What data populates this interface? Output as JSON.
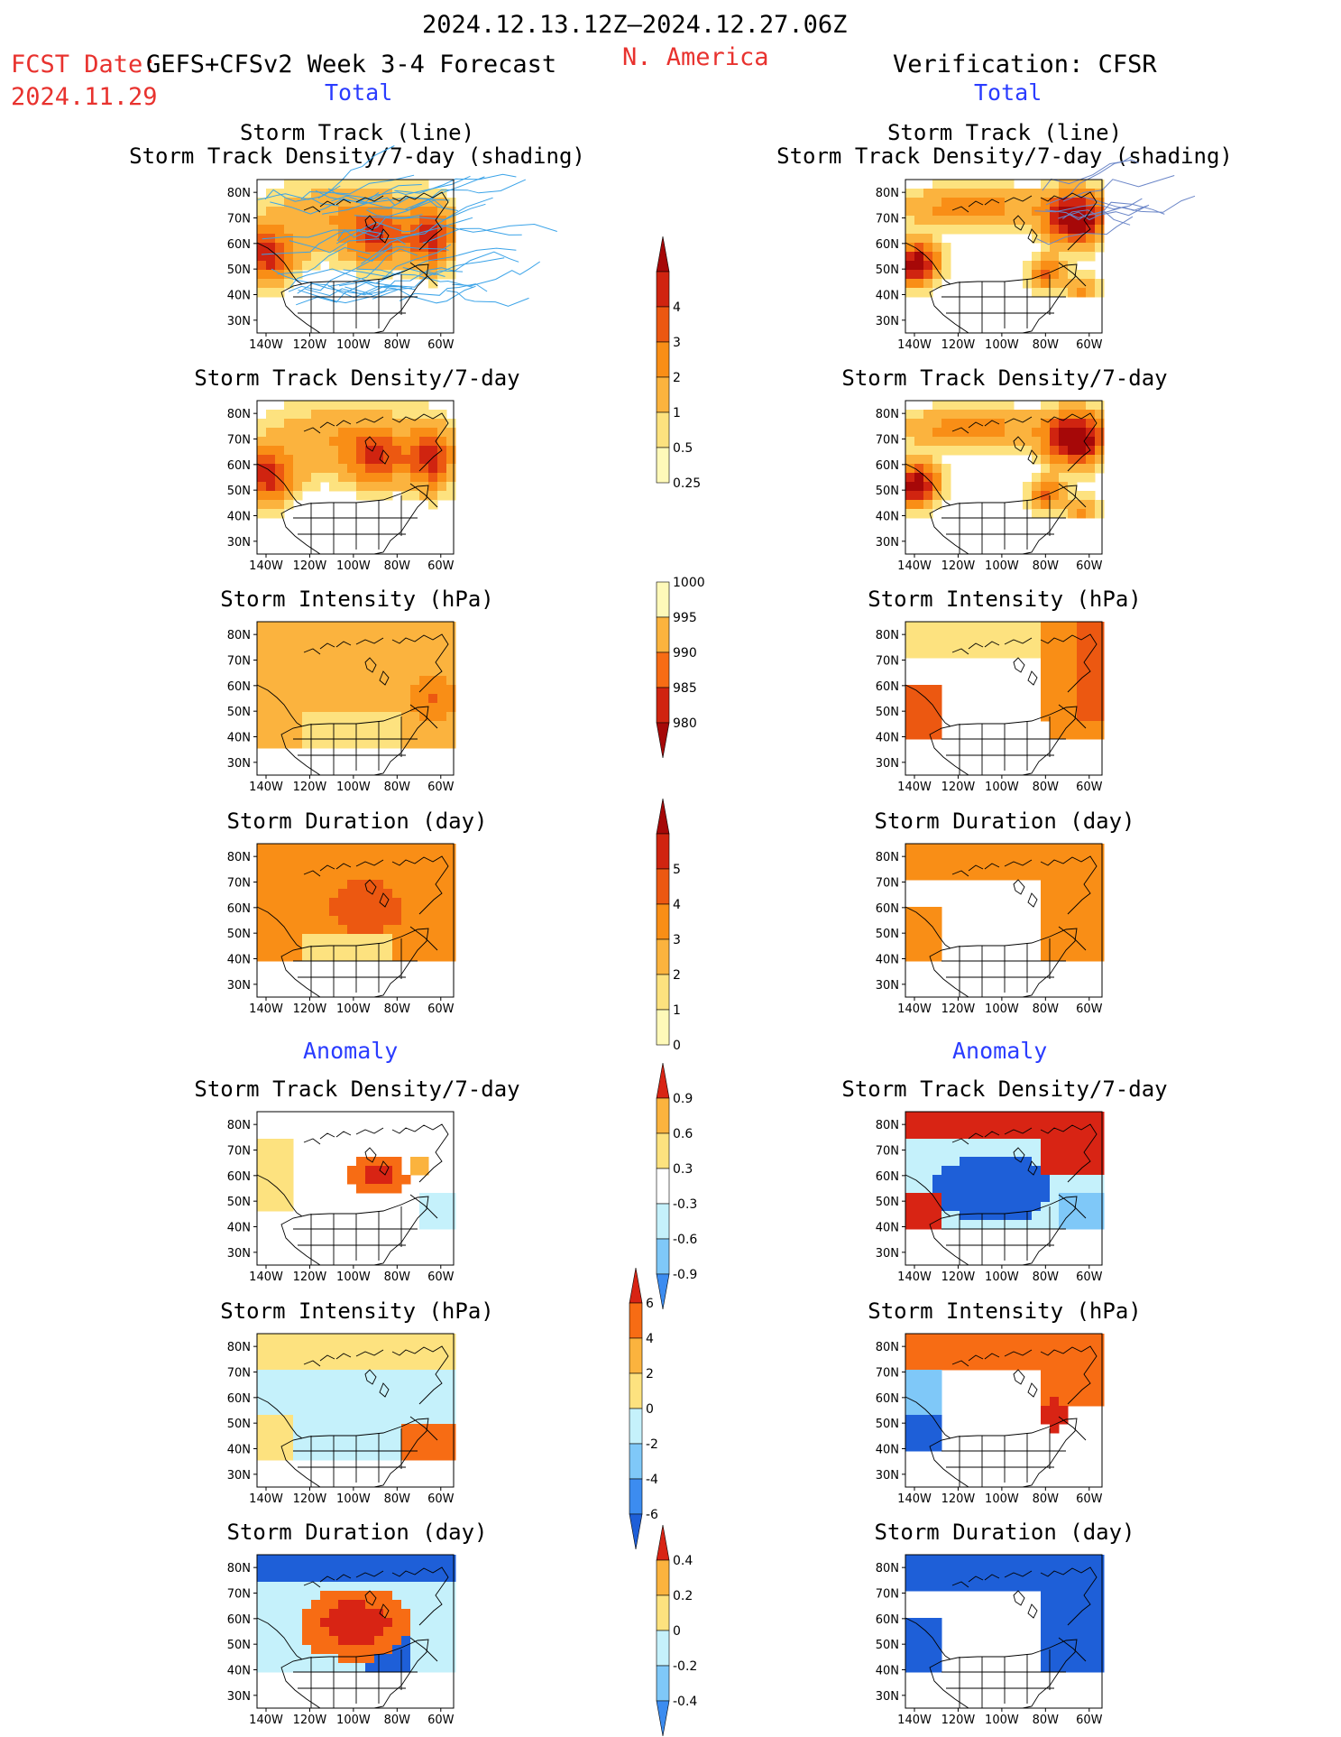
{
  "header": {
    "date_range": "2024.12.13.12Z–2024.12.27.06Z",
    "fcst_label": "FCST Date:",
    "fcst_model": "GEFS+CFSv2 Week 3-4 Forecast",
    "fcst_date": "2024.11.29",
    "region": "N. America",
    "verification": "Verification: CFSR",
    "total_left": "Total",
    "total_right": "Total",
    "anomaly_left": "Anomaly",
    "anomaly_right": "Anomaly"
  },
  "axes": {
    "lon_ticks": [
      "140W",
      "120W",
      "100W",
      "80W",
      "60W"
    ],
    "lat_ticks": [
      "80N",
      "70N",
      "60N",
      "50N",
      "40N",
      "30N"
    ]
  },
  "colors": {
    "total_scale": [
      "#fef9b9",
      "#fde27f",
      "#fbb33e",
      "#f98e16",
      "#ec5811",
      "#d02410",
      "#a60808"
    ],
    "anom_scale": [
      "#1e5fd8",
      "#3c8cf0",
      "#7fc8f8",
      "#c5f1fb",
      "#ffffff",
      "#fde27f",
      "#fbb33e",
      "#f76c14",
      "#d82414"
    ],
    "track_line": "#3aa3e8",
    "track_line_obs": "#6b86c8"
  },
  "chart_data": [
    {
      "type": "heatmap",
      "id": "fc-track",
      "title_line1": "Storm Track (line)",
      "title_line2": "Storm Track Density/7-day (shading)",
      "xlabel": "",
      "ylabel": "",
      "x_range": [
        -140,
        -50
      ],
      "y_range": [
        25,
        85
      ],
      "scale": "total",
      "has_tracks": true
    },
    {
      "type": "heatmap",
      "id": "obs-track",
      "title_line1": "Storm Track (line)",
      "title_line2": "Storm Track Density/7-day (shading)",
      "xlabel": "",
      "ylabel": "",
      "x_range": [
        -140,
        -50
      ],
      "y_range": [
        25,
        85
      ],
      "scale": "total",
      "has_tracks": true
    },
    {
      "type": "heatmap",
      "id": "fc-density",
      "title_line1": "Storm Track Density/7-day",
      "xlabel": "",
      "ylabel": "",
      "x_range": [
        -140,
        -50
      ],
      "y_range": [
        25,
        85
      ],
      "scale": "total"
    },
    {
      "type": "heatmap",
      "id": "obs-density",
      "title_line1": "Storm Track Density/7-day",
      "xlabel": "",
      "ylabel": "",
      "x_range": [
        -140,
        -50
      ],
      "y_range": [
        25,
        85
      ],
      "scale": "total"
    },
    {
      "type": "heatmap",
      "id": "fc-intensity",
      "title_line1": "Storm Intensity (hPa)",
      "xlabel": "",
      "ylabel": "",
      "x_range": [
        -140,
        -50
      ],
      "y_range": [
        25,
        85
      ],
      "scale": "total"
    },
    {
      "type": "heatmap",
      "id": "obs-intensity",
      "title_line1": "Storm Intensity (hPa)",
      "xlabel": "",
      "ylabel": "",
      "x_range": [
        -140,
        -50
      ],
      "y_range": [
        25,
        85
      ],
      "scale": "total"
    },
    {
      "type": "heatmap",
      "id": "fc-duration",
      "title_line1": "Storm Duration (day)",
      "xlabel": "",
      "ylabel": "",
      "x_range": [
        -140,
        -50
      ],
      "y_range": [
        25,
        85
      ],
      "scale": "total"
    },
    {
      "type": "heatmap",
      "id": "obs-duration",
      "title_line1": "Storm Duration (day)",
      "xlabel": "",
      "ylabel": "",
      "x_range": [
        -140,
        -50
      ],
      "y_range": [
        25,
        85
      ],
      "scale": "total"
    },
    {
      "type": "heatmap",
      "id": "fc-density-anom",
      "title_line1": "Storm Track Density/7-day",
      "xlabel": "",
      "ylabel": "",
      "x_range": [
        -140,
        -50
      ],
      "y_range": [
        25,
        85
      ],
      "scale": "anom"
    },
    {
      "type": "heatmap",
      "id": "obs-density-anom",
      "title_line1": "Storm Track Density/7-day",
      "xlabel": "",
      "ylabel": "",
      "x_range": [
        -140,
        -50
      ],
      "y_range": [
        25,
        85
      ],
      "scale": "anom"
    },
    {
      "type": "heatmap",
      "id": "fc-intensity-anom",
      "title_line1": "Storm Intensity (hPa)",
      "xlabel": "",
      "ylabel": "",
      "x_range": [
        -140,
        -50
      ],
      "y_range": [
        25,
        85
      ],
      "scale": "anom"
    },
    {
      "type": "heatmap",
      "id": "obs-intensity-anom",
      "title_line1": "Storm Intensity (hPa)",
      "xlabel": "",
      "ylabel": "",
      "x_range": [
        -140,
        -50
      ],
      "y_range": [
        25,
        85
      ],
      "scale": "anom"
    },
    {
      "type": "heatmap",
      "id": "fc-duration-anom",
      "title_line1": "Storm Duration (day)",
      "xlabel": "",
      "ylabel": "",
      "x_range": [
        -140,
        -50
      ],
      "y_range": [
        25,
        85
      ],
      "scale": "anom"
    },
    {
      "type": "heatmap",
      "id": "obs-duration-anom",
      "title_line1": "Storm Duration (day)",
      "xlabel": "",
      "ylabel": "",
      "x_range": [
        -140,
        -50
      ],
      "y_range": [
        25,
        85
      ],
      "scale": "anom"
    }
  ],
  "colorbars": [
    {
      "id": "cb-density",
      "labels": [
        "0.25",
        "0.5",
        "1",
        "2",
        "3",
        "4"
      ],
      "colors": [
        "#fef9b9",
        "#fde27f",
        "#fbb33e",
        "#f98e16",
        "#ec5811",
        "#d02410",
        "#a60808"
      ],
      "top_arrow": true,
      "bottom_arrow": false
    },
    {
      "id": "cb-intensity",
      "labels": [
        "1000",
        "995",
        "990",
        "985",
        "980"
      ],
      "colors": [
        "#fef9b9",
        "#fbb33e",
        "#f76c14",
        "#d02410",
        "#a60808"
      ],
      "top_arrow": false,
      "bottom_arrow": true
    },
    {
      "id": "cb-duration",
      "labels": [
        "0",
        "1",
        "2",
        "3",
        "4",
        "5"
      ],
      "colors": [
        "#fef9b9",
        "#fde27f",
        "#fbb33e",
        "#f98e16",
        "#ec5811",
        "#d02410",
        "#a60808"
      ],
      "top_arrow": true,
      "bottom_arrow": false
    },
    {
      "id": "cb-density-anom",
      "labels": [
        "0.9",
        "0.6",
        "0.3",
        "-0.3",
        "-0.6",
        "-0.9"
      ],
      "colors": [
        "#f76c14",
        "#fbb33e",
        "#fde27f",
        "#ffffff",
        "#c5f1fb",
        "#7fc8f8",
        "#3c8cf0"
      ],
      "top_arrow": true,
      "bottom_arrow": true
    },
    {
      "id": "cb-intensity-anom",
      "labels": [
        "6",
        "4",
        "2",
        "0",
        "-2",
        "-4",
        "-6"
      ],
      "colors": [
        "#d82414",
        "#f76c14",
        "#fbb33e",
        "#fde27f",
        "#c5f1fb",
        "#7fc8f8",
        "#3c8cf0",
        "#1e5fd8"
      ],
      "top_arrow": true,
      "bottom_arrow": true
    },
    {
      "id": "cb-duration-anom",
      "labels": [
        "0.4",
        "0.2",
        "0",
        "-0.2",
        "-0.4"
      ],
      "colors": [
        "#f76c14",
        "#fbb33e",
        "#fde27f",
        "#c5f1fb",
        "#7fc8f8",
        "#3c8cf0"
      ],
      "top_arrow": true,
      "bottom_arrow": true
    }
  ]
}
